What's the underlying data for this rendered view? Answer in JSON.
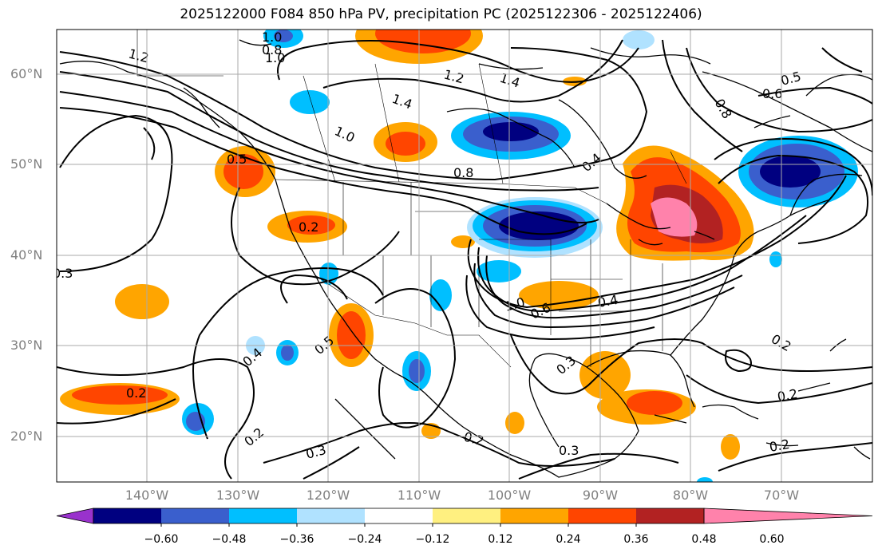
{
  "title": "2025122000 F084 850 hPa PV, precipitation PC (2025122306 - 2025122406)",
  "map": {
    "lat_labels": [
      "60°N",
      "50°N",
      "40°N",
      "30°N",
      "20°N"
    ],
    "lon_labels": [
      "140°W",
      "130°W",
      "120°W",
      "110°W",
      "100°W",
      "90°W",
      "80°W",
      "70°W"
    ],
    "lon_range": [
      -150,
      -60
    ],
    "lat_range": [
      15,
      65
    ]
  },
  "contour_labels": [
    "1.2",
    "1.4",
    "1.2",
    "1.4",
    "1.0",
    "0.8",
    "1.0",
    "0.5",
    "0.2",
    "0.8",
    "0.4",
    "0.3",
    "0.4",
    "0.5",
    "1.0",
    "0.6",
    "0.4",
    "0.3",
    "0.2",
    "0.2",
    "0.2",
    "0.2",
    "0.3",
    "0.3",
    "0.2",
    "0.2",
    "0.6",
    "0.5",
    "0.8",
    "1.0"
  ],
  "colorbar": {
    "ticks": [
      "−0.60",
      "−0.48",
      "−0.36",
      "−0.24",
      "−0.12",
      "0.12",
      "0.24",
      "0.36",
      "0.48",
      "0.60"
    ],
    "colors": [
      "#9932cc",
      "#000080",
      "#3a5fcd",
      "#00bfff",
      "#b0e2ff",
      "#ffffff",
      "#fff080",
      "#ffa500",
      "#ff4500",
      "#b22222",
      "#ff82ab"
    ]
  }
}
